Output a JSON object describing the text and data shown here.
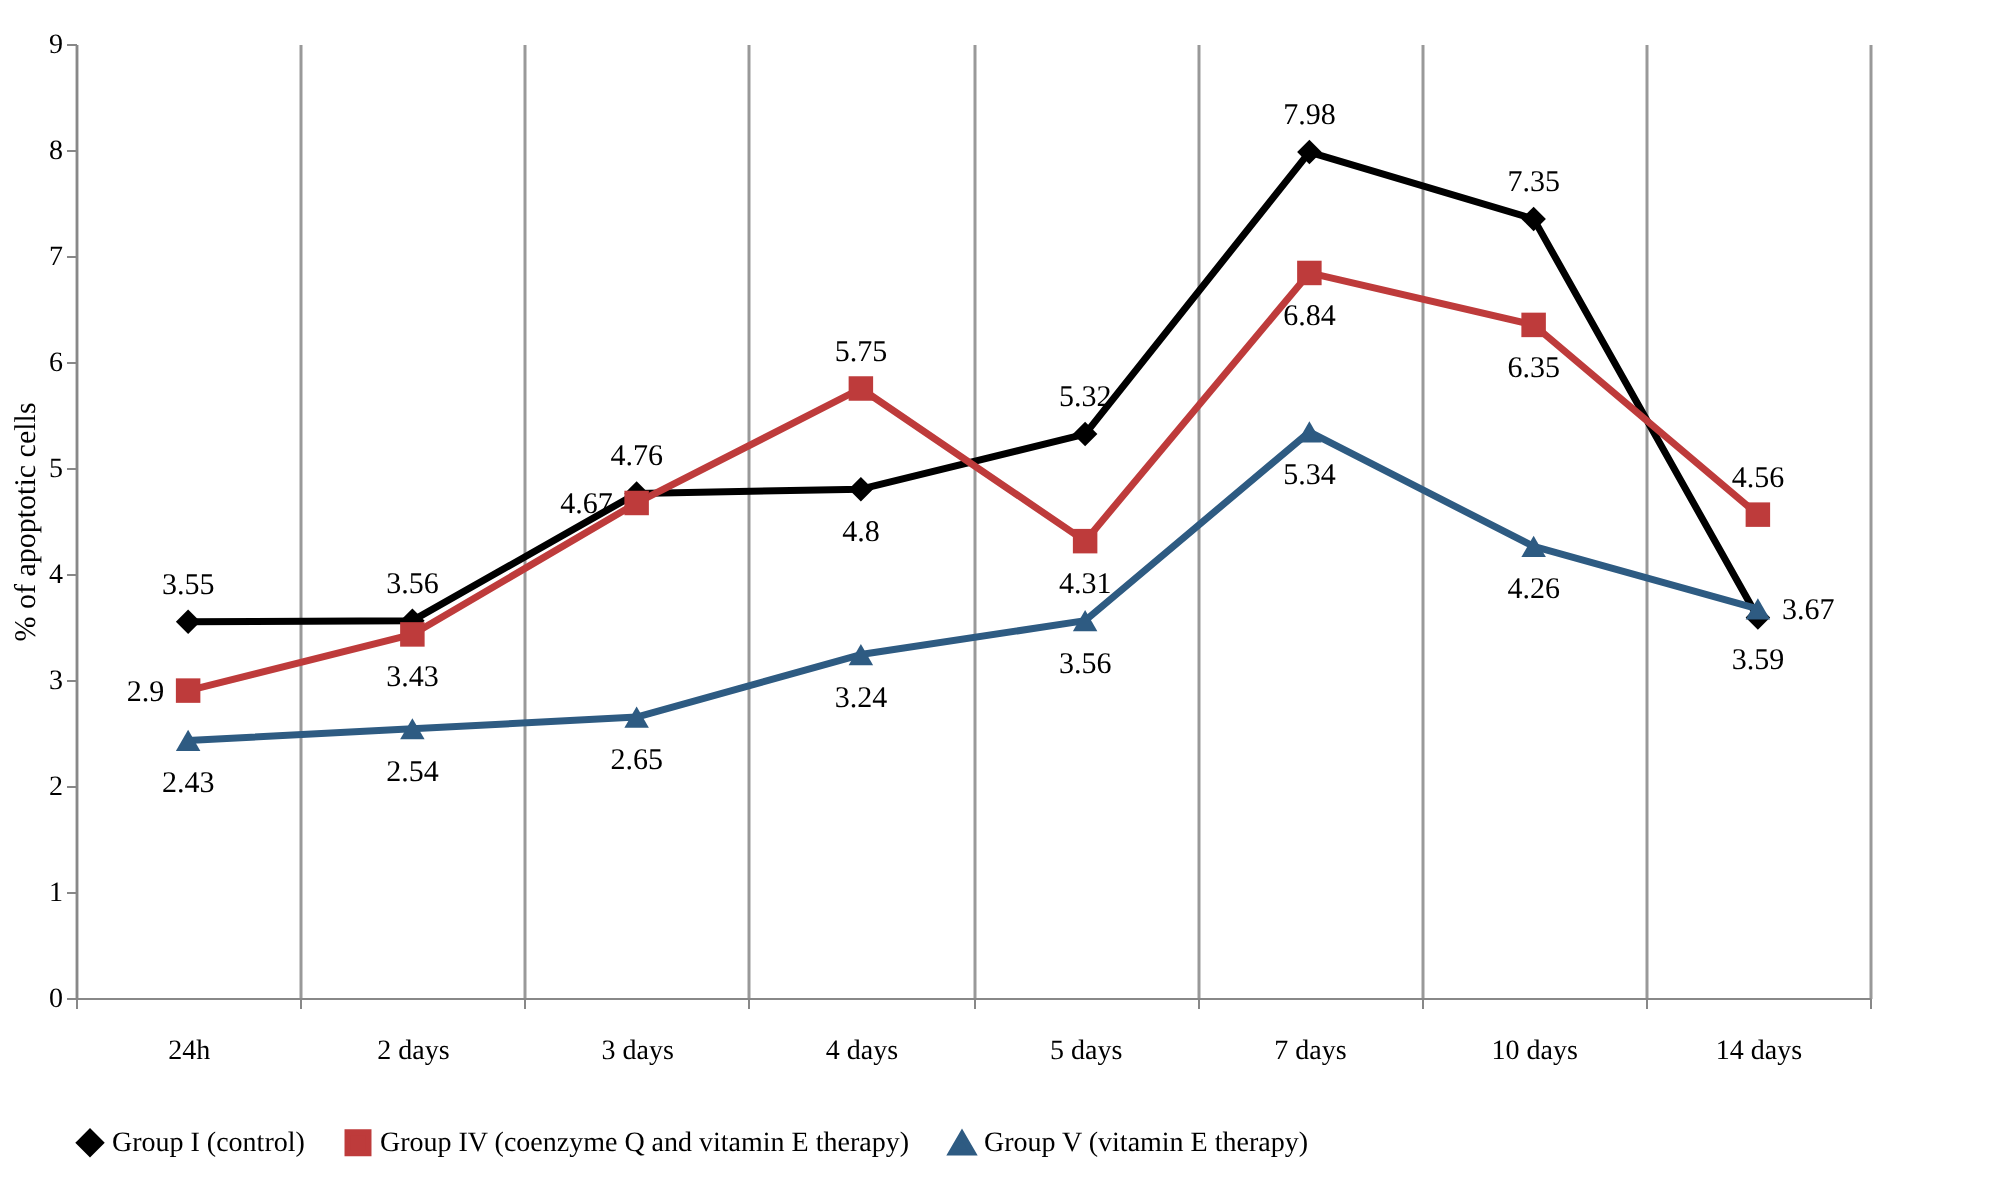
{
  "chart_data": {
    "type": "line",
    "ylabel": "% of apoptotic cells",
    "categories": [
      "24h",
      "2 days",
      "3 days",
      "4 days",
      "5 days",
      "7 days",
      "10 days",
      "14 days"
    ],
    "series": [
      {
        "name": "Group I (control)",
        "color": "#000000",
        "marker": "diamond",
        "values": [
          3.55,
          3.56,
          4.76,
          4.8,
          5.32,
          7.98,
          7.35,
          3.59
        ]
      },
      {
        "name": "Group IV (coenzyme Q and vitamin E therapy)",
        "color": "#be3b3b",
        "marker": "square",
        "values": [
          2.9,
          3.43,
          4.67,
          5.75,
          4.31,
          6.84,
          6.35,
          4.56
        ]
      },
      {
        "name": "Group V (vitamin E therapy)",
        "color": "#2e5b82",
        "marker": "triangle",
        "values": [
          2.43,
          2.54,
          2.65,
          3.24,
          3.56,
          5.34,
          4.26,
          3.67
        ]
      }
    ],
    "ylim": [
      0,
      9
    ],
    "yticks": [
      0,
      1,
      2,
      3,
      4,
      5,
      6,
      7,
      8,
      9
    ],
    "grid": "x",
    "legend": "bottom",
    "data_labels": true,
    "line_style": "solid"
  }
}
